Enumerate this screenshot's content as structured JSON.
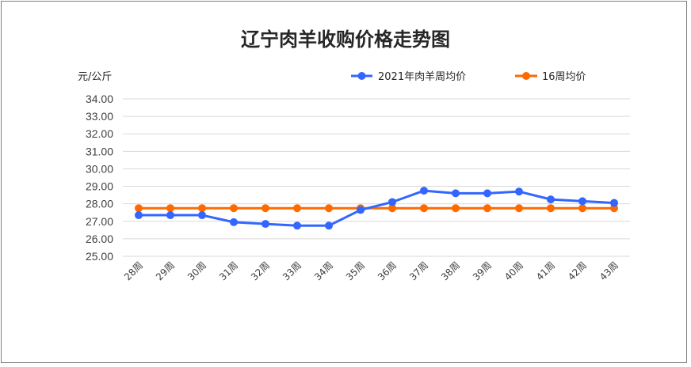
{
  "colors": {
    "series_blue": "#3366FF",
    "series_orange": "#FF6A00",
    "grid": "#D9D9D9"
  },
  "chart_data": {
    "type": "line",
    "title": "辽宁肉羊收购价格走势图",
    "ylabel": "元/公斤",
    "xlabel": "",
    "categories": [
      "28周",
      "29周",
      "30周",
      "31周",
      "32周",
      "33周",
      "34周",
      "35周",
      "36周",
      "37周",
      "38周",
      "39周",
      "40周",
      "41周",
      "42周",
      "43周"
    ],
    "ylim": [
      25.0,
      34.0
    ],
    "yticks": [
      "34.00",
      "33.00",
      "32.00",
      "31.00",
      "30.00",
      "29.00",
      "28.00",
      "27.00",
      "26.00",
      "25.00"
    ],
    "grid": true,
    "legend_position": "top-right",
    "series": [
      {
        "name": "2021年肉羊周均价",
        "color": "#3366FF",
        "values": [
          27.35,
          27.35,
          27.35,
          26.95,
          26.85,
          26.75,
          26.75,
          27.65,
          28.1,
          28.75,
          28.6,
          28.6,
          28.7,
          28.25,
          28.15,
          28.05
        ]
      },
      {
        "name": "16周均价",
        "color": "#FF6A00",
        "values": [
          27.75,
          27.75,
          27.75,
          27.75,
          27.75,
          27.75,
          27.75,
          27.75,
          27.75,
          27.75,
          27.75,
          27.75,
          27.75,
          27.75,
          27.75,
          27.75
        ]
      }
    ]
  }
}
